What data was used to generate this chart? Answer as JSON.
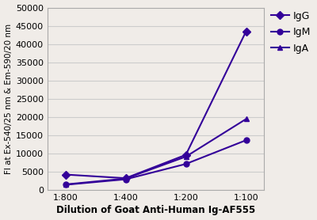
{
  "x_labels": [
    "1:800",
    "1:400",
    "1:200",
    "1:100"
  ],
  "x_values": [
    0,
    1,
    2,
    3
  ],
  "IgG": [
    4300,
    3300,
    9700,
    43500
  ],
  "IgM": [
    1500,
    3000,
    7200,
    13700
  ],
  "IgA": [
    1600,
    3200,
    9200,
    19500
  ],
  "line_color": "#330099",
  "marker_IgG": "D",
  "marker_IgM": "o",
  "marker_IgA": "^",
  "xlabel": "Dilution of Goat Anti-Human Ig-AF555",
  "ylabel": "FI at Ex-540/25 nm & Em-590/20 nm",
  "ylim": [
    0,
    50000
  ],
  "yticks": [
    0,
    5000,
    10000,
    15000,
    20000,
    25000,
    30000,
    35000,
    40000,
    45000,
    50000
  ],
  "background_color": "#f0ece8",
  "plot_bg_color": "#f0ece8",
  "grid_color": "#cccccc",
  "legend_labels": [
    "IgG",
    "IgM",
    "IgA"
  ],
  "xlabel_fontsize": 8.5,
  "ylabel_fontsize": 7.5,
  "tick_fontsize": 8,
  "legend_fontsize": 9,
  "marker_size": 5,
  "line_width": 1.5
}
